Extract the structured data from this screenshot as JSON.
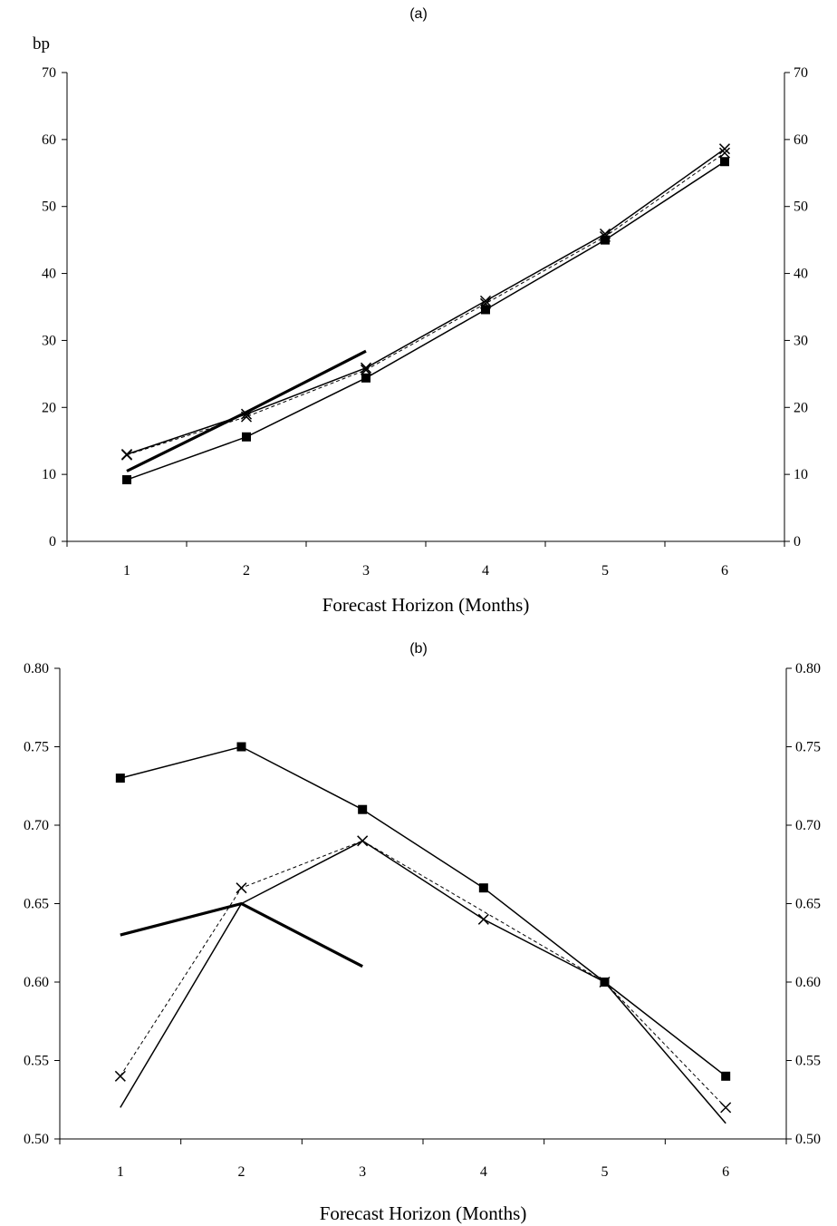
{
  "chart_data": [
    {
      "type": "line",
      "title": "(a)",
      "unit_label": "bp",
      "xlabel": "Forecast Horizon (Months)",
      "x": [
        1,
        2,
        3,
        4,
        5,
        6
      ],
      "ylim": [
        0,
        70
      ],
      "y_ticks": [
        "0",
        "10",
        "20",
        "30",
        "40",
        "50",
        "60",
        "70"
      ],
      "right_axis_ticks": true,
      "grid": false,
      "series": [
        {
          "style": "solid-square-markers",
          "values": [
            9.2,
            15.6,
            24.4,
            34.6,
            45.0,
            56.7
          ]
        },
        {
          "style": "dashed-x-markers",
          "values": [
            12.9,
            18.6,
            25.6,
            35.5,
            45.5,
            58.0
          ]
        },
        {
          "style": "solid-x-markers",
          "values": [
            13.0,
            19.0,
            25.9,
            35.9,
            45.9,
            58.6
          ]
        },
        {
          "style": "thick-solid",
          "values": [
            10.5,
            19.3,
            28.4,
            null,
            null,
            null
          ]
        }
      ]
    },
    {
      "type": "line",
      "title": "(b)",
      "xlabel": "Forecast Horizon (Months)",
      "x": [
        1,
        2,
        3,
        4,
        5,
        6
      ],
      "ylim": [
        0.5,
        0.8
      ],
      "y_ticks": [
        "0.50",
        "0.55",
        "0.60",
        "0.65",
        "0.70",
        "0.75",
        "0.80"
      ],
      "right_axis_ticks": true,
      "grid": false,
      "series": [
        {
          "style": "solid-square-markers",
          "values": [
            0.73,
            0.75,
            0.71,
            0.66,
            0.6,
            0.54
          ]
        },
        {
          "style": "dashed-x-markers",
          "values": [
            0.54,
            0.66,
            0.69,
            null,
            0.6,
            0.52
          ]
        },
        {
          "style": "solid-plain",
          "values": [
            0.52,
            0.65,
            0.69,
            0.64,
            0.6,
            0.51
          ]
        },
        {
          "style": "x-markers-only",
          "values": [
            null,
            null,
            null,
            0.64,
            null,
            null
          ]
        },
        {
          "style": "thick-solid",
          "values": [
            0.63,
            0.65,
            0.61,
            null,
            null,
            null
          ]
        }
      ]
    }
  ]
}
